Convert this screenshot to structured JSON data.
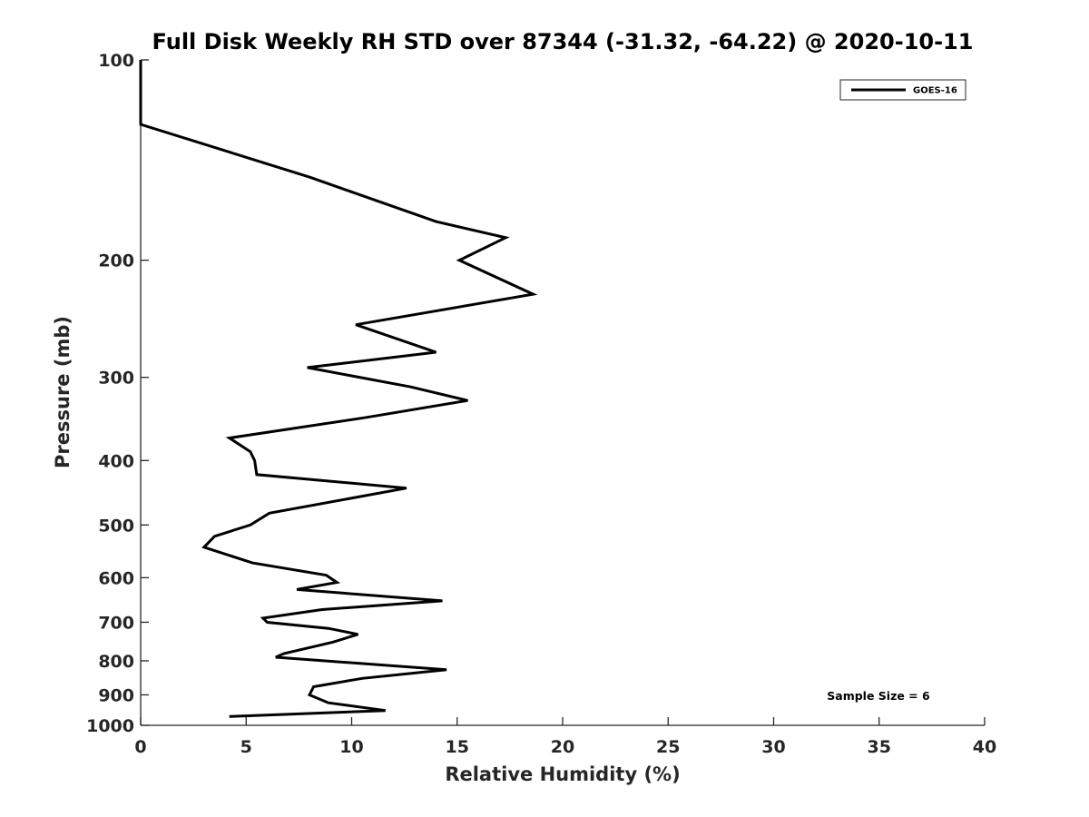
{
  "chart_data": {
    "type": "line",
    "title": "Full Disk Weekly RH STD over 87344 (-31.32, -64.22) @ 2020-10-11",
    "xlabel": "Relative Humidity (%)",
    "ylabel": "Pressure (mb)",
    "xlim": [
      0,
      40
    ],
    "ylim": [
      100,
      1000
    ],
    "y_scale": "log",
    "y_reversed": true,
    "x_ticks": [
      0,
      5,
      10,
      15,
      20,
      25,
      30,
      35,
      40
    ],
    "x_tick_labels": [
      "0",
      "5",
      "10",
      "15",
      "20",
      "25",
      "30",
      "35",
      "40"
    ],
    "y_ticks": [
      100,
      200,
      300,
      400,
      500,
      600,
      700,
      800,
      900,
      1000
    ],
    "y_tick_labels": [
      "100",
      "200",
      "300",
      "400",
      "500",
      "600",
      "700",
      "800",
      "900",
      "1000"
    ],
    "grid": false,
    "legend_position": "top-right",
    "annotation": "Sample Size = 6",
    "series": [
      {
        "name": "GOES-16",
        "color": "#000000",
        "points": [
          [
            0.0,
            100
          ],
          [
            0.0,
            125
          ],
          [
            8.0,
            150
          ],
          [
            14.0,
            175
          ],
          [
            17.3,
            185
          ],
          [
            15.1,
            200
          ],
          [
            18.6,
            225
          ],
          [
            10.2,
            250
          ],
          [
            14.0,
            275
          ],
          [
            7.9,
            290
          ],
          [
            12.8,
            310
          ],
          [
            15.5,
            325
          ],
          [
            10.6,
            345
          ],
          [
            4.2,
            370
          ],
          [
            5.2,
            388
          ],
          [
            5.4,
            400
          ],
          [
            5.5,
            420
          ],
          [
            12.6,
            440
          ],
          [
            6.1,
            480
          ],
          [
            5.2,
            500
          ],
          [
            3.5,
            520
          ],
          [
            3.0,
            540
          ],
          [
            5.3,
            570
          ],
          [
            8.8,
            595
          ],
          [
            9.3,
            610
          ],
          [
            7.4,
            625
          ],
          [
            14.3,
            650
          ],
          [
            8.6,
            670
          ],
          [
            5.8,
            690
          ],
          [
            6.0,
            700
          ],
          [
            8.9,
            715
          ],
          [
            10.3,
            730
          ],
          [
            9.1,
            750
          ],
          [
            6.8,
            780
          ],
          [
            6.4,
            790
          ],
          [
            14.5,
            825
          ],
          [
            10.5,
            850
          ],
          [
            8.2,
            875
          ],
          [
            8.0,
            900
          ],
          [
            8.9,
            925
          ],
          [
            11.6,
            950
          ],
          [
            4.2,
            970
          ]
        ]
      }
    ]
  }
}
